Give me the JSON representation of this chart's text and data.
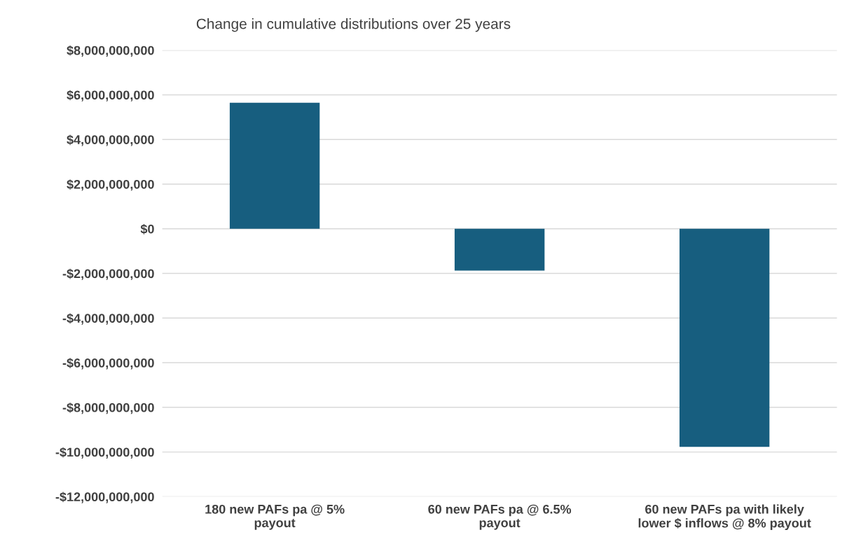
{
  "chart_data": {
    "type": "bar",
    "title": "Change in cumulative distributions over 25 years",
    "categories": [
      "180 new PAFs pa @ 5%\npayout",
      "60 new PAFs pa @ 6.5%\npayout",
      "60 new PAFs pa with likely\nlower $ inflows @ 8% payout"
    ],
    "values": [
      5650000000,
      -1870000000,
      -9770000000
    ],
    "color": "#175e7f",
    "ylim": [
      -12000000000,
      8000000000
    ],
    "yticks": [
      {
        "value": -12000000000,
        "label": "-$12,000,000,000"
      },
      {
        "value": -10000000000,
        "label": "-$10,000,000,000"
      },
      {
        "value": -8000000000,
        "label": "-$8,000,000,000"
      },
      {
        "value": -6000000000,
        "label": "-$6,000,000,000"
      },
      {
        "value": -4000000000,
        "label": "-$4,000,000,000"
      },
      {
        "value": -2000000000,
        "label": "-$2,000,000,000"
      },
      {
        "value": 0,
        "label": "$0"
      },
      {
        "value": 2000000000,
        "label": "$2,000,000,000"
      },
      {
        "value": 4000000000,
        "label": "$4,000,000,000"
      },
      {
        "value": 6000000000,
        "label": "$6,000,000,000"
      },
      {
        "value": 8000000000,
        "label": "$8,000,000,000"
      }
    ],
    "grid": "y"
  }
}
